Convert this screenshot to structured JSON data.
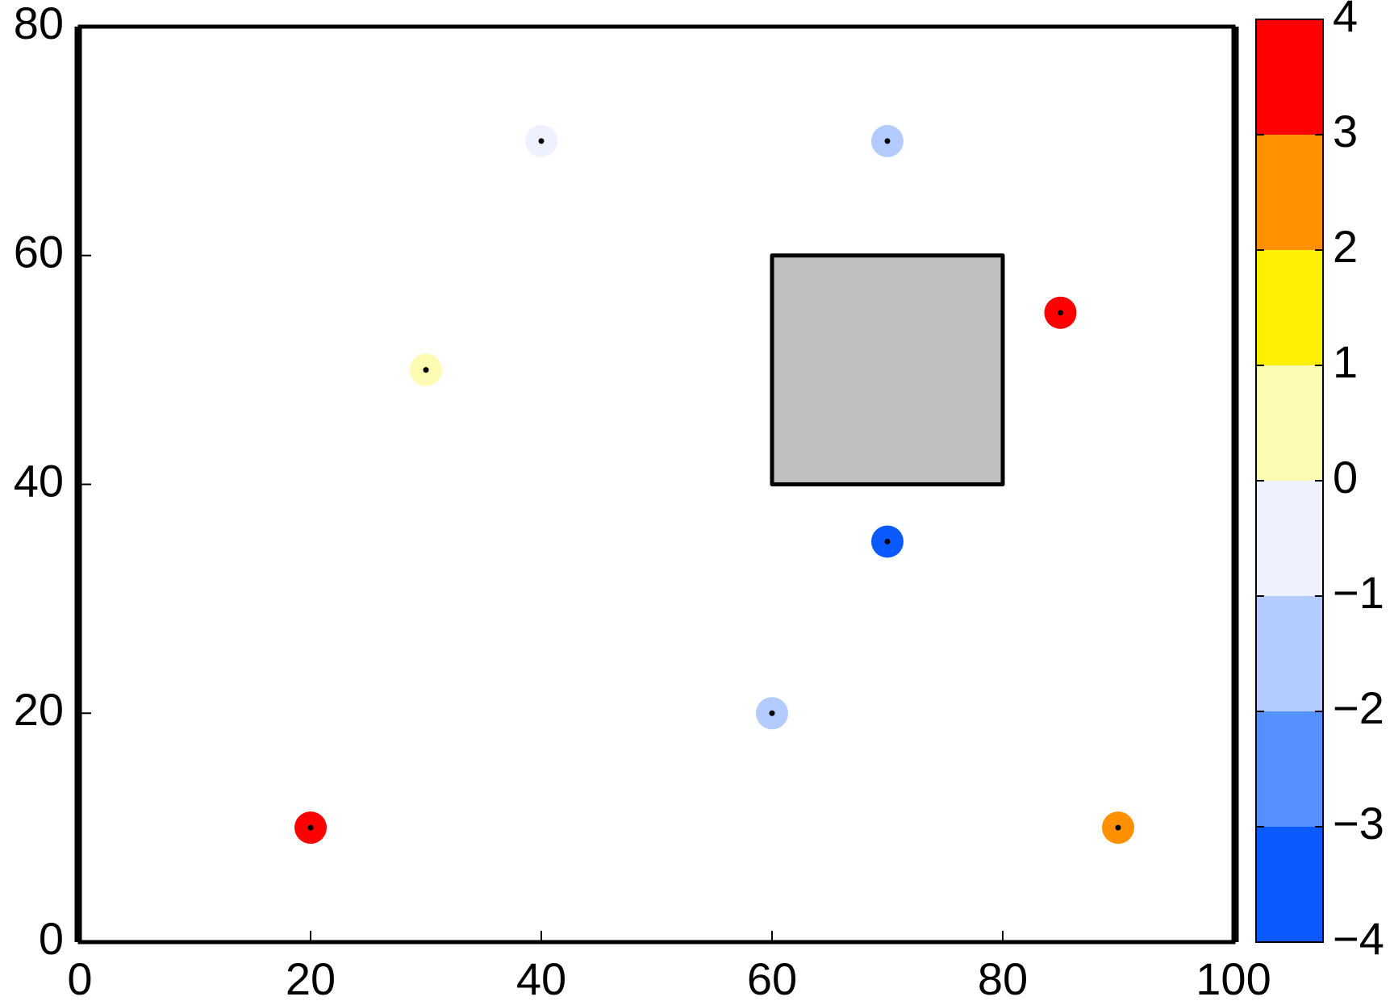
{
  "chart_data": {
    "type": "scatter",
    "x": [
      20,
      30,
      40,
      60,
      70,
      70,
      85,
      90
    ],
    "y": [
      10,
      50,
      70,
      20,
      70,
      35,
      55,
      10
    ],
    "values": [
      3.5,
      0.5,
      -0.5,
      -1.5,
      -1.5,
      -3.5,
      3.5,
      2.5
    ],
    "xlim": [
      0,
      100
    ],
    "xticks": [
      0,
      20,
      40,
      60,
      80,
      100
    ],
    "ylim": [
      0,
      80
    ],
    "yticks": [
      0,
      20,
      40,
      60,
      80
    ],
    "rectangle": {
      "x": [
        60,
        80
      ],
      "y": [
        40,
        60
      ],
      "color": "#bfbfbf"
    },
    "colorbar": {
      "lim": [
        -4,
        4
      ],
      "ticks": [
        {
          "value": -4,
          "label": "−4"
        },
        {
          "value": -3,
          "label": "−3"
        },
        {
          "value": -2,
          "label": "−2"
        },
        {
          "value": -1,
          "label": "−1"
        },
        0,
        1,
        2,
        3,
        4
      ],
      "colors": [
        "#0a5aff",
        "#5590ff",
        "#b3cbff",
        "#eef2ff",
        "#fefcb3",
        "#ffef00",
        "#ff9000",
        "#ff0000"
      ]
    }
  }
}
